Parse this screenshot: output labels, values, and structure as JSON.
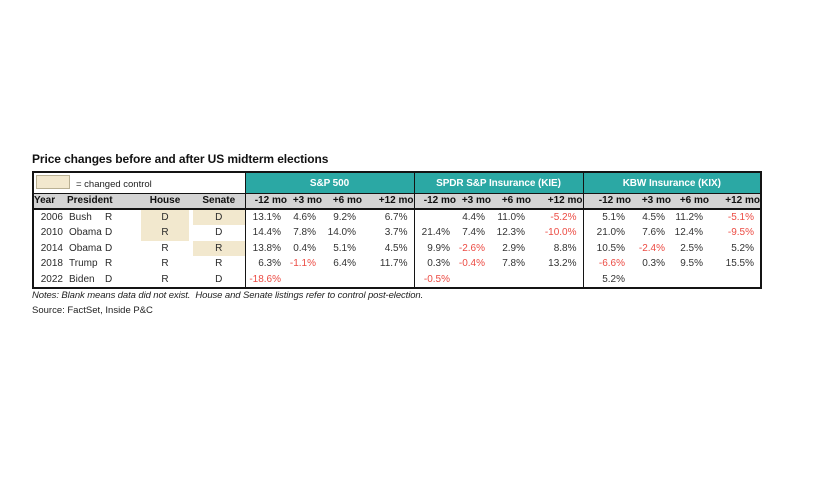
{
  "title": "Price changes before and after US midterm elections",
  "legend": {
    "label": "= changed control"
  },
  "table_headers": {
    "year": "Year",
    "president": "President",
    "house": "House",
    "senate": "Senate"
  },
  "notes": {
    "text": "Notes: Blank means data did not exist.  House and Senate listings refer to control post-election."
  },
  "source": {
    "text": "Source: FactSet, Inside P&C"
  },
  "colors": {
    "group_header_teal": "#2BA8A4",
    "changed_control_highlight": "#F2E8CE",
    "negative_value_red": "#EC4B43",
    "column_header_gray": "#D4D4D4"
  },
  "chart_data": {
    "type": "table",
    "title": "Price changes before and after US midterm elections",
    "column_groups": [
      "S&P 500",
      "SPDR S&P Insurance (KIE)",
      "KBW Insurance (KIX)"
    ],
    "month_columns": [
      "-12 mo",
      "+3 mo",
      "+6 mo",
      "+12 mo"
    ],
    "rows": [
      {
        "year": "2006",
        "president": "Bush",
        "party": "R",
        "house": "D",
        "house_changed": true,
        "senate": "D",
        "senate_changed": true,
        "sp500": [
          "13.1%",
          "4.6%",
          "9.2%",
          "6.7%"
        ],
        "kie": [
          "",
          "4.4%",
          "11.0%",
          "-5.2%"
        ],
        "kix": [
          "5.1%",
          "4.5%",
          "11.2%",
          "-5.1%"
        ]
      },
      {
        "year": "2010",
        "president": "Obama",
        "party": "D",
        "house": "R",
        "house_changed": true,
        "senate": "D",
        "senate_changed": false,
        "sp500": [
          "14.4%",
          "7.8%",
          "14.0%",
          "3.7%"
        ],
        "kie": [
          "21.4%",
          "7.4%",
          "12.3%",
          "-10.0%"
        ],
        "kix": [
          "21.0%",
          "7.6%",
          "12.4%",
          "-9.5%"
        ]
      },
      {
        "year": "2014",
        "president": "Obama",
        "party": "D",
        "house": "R",
        "house_changed": false,
        "senate": "R",
        "senate_changed": true,
        "sp500": [
          "13.8%",
          "0.4%",
          "5.1%",
          "4.5%"
        ],
        "kie": [
          "9.9%",
          "-2.6%",
          "2.9%",
          "8.8%"
        ],
        "kix": [
          "10.5%",
          "-2.4%",
          "2.5%",
          "5.2%"
        ]
      },
      {
        "year": "2018",
        "president": "Trump",
        "party": "R",
        "house": "R",
        "house_changed": false,
        "senate": "R",
        "senate_changed": false,
        "sp500": [
          "6.3%",
          "-1.1%",
          "6.4%",
          "11.7%"
        ],
        "kie": [
          "0.3%",
          "-0.4%",
          "7.8%",
          "13.2%"
        ],
        "kix": [
          "-6.6%",
          "0.3%",
          "9.5%",
          "15.5%"
        ]
      },
      {
        "year": "2022",
        "president": "Biden",
        "party": "D",
        "house": "R",
        "house_changed": false,
        "senate": "D",
        "senate_changed": false,
        "sp500": [
          "-18.6%",
          "",
          "",
          ""
        ],
        "kie": [
          "-0.5%",
          "",
          "",
          ""
        ],
        "kix": [
          "5.2%",
          "",
          "",
          ""
        ]
      }
    ]
  }
}
